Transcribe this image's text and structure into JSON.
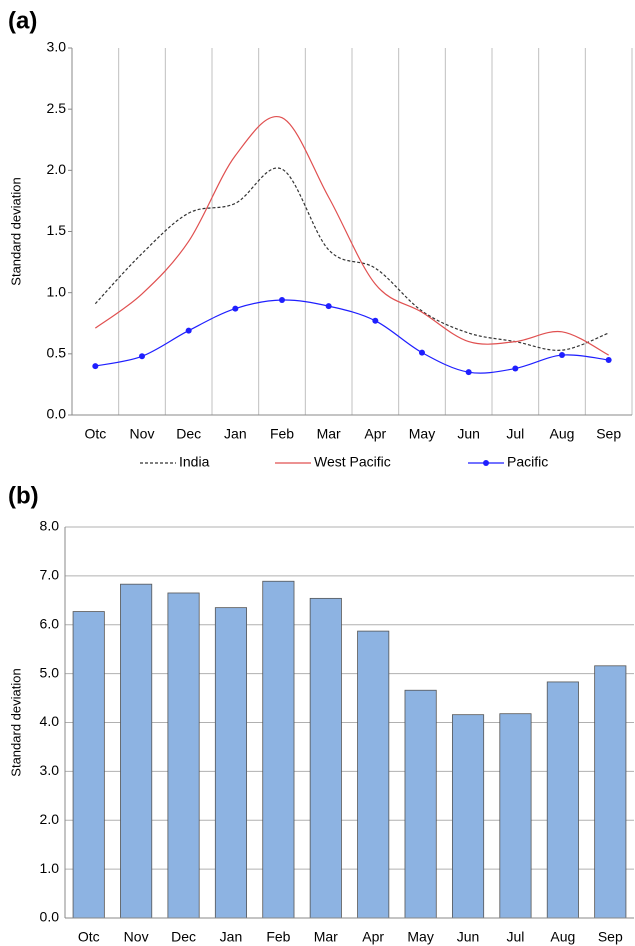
{
  "chart_data": [
    {
      "type": "line",
      "panel_label": "(a)",
      "y_label": "Standard deviation",
      "categories": [
        "Otc",
        "Nov",
        "Dec",
        "Jan",
        "Feb",
        "Mar",
        "Apr",
        "May",
        "Jun",
        "Jul",
        "Aug",
        "Sep"
      ],
      "series": [
        {
          "name": "India",
          "color": "#333333",
          "dashed": true,
          "markers": false,
          "values": [
            0.91,
            1.32,
            1.65,
            1.73,
            2.01,
            1.35,
            1.2,
            0.85,
            0.67,
            0.6,
            0.53,
            0.67
          ]
        },
        {
          "name": "West Pacific",
          "color": "#e05050",
          "dashed": false,
          "markers": false,
          "values": [
            0.71,
            0.99,
            1.42,
            2.12,
            2.43,
            1.78,
            1.07,
            0.84,
            0.6,
            0.6,
            0.68,
            0.49
          ]
        },
        {
          "name": "Pacific",
          "color": "#1f1fff",
          "dashed": false,
          "markers": true,
          "values": [
            0.4,
            0.48,
            0.69,
            0.87,
            0.94,
            0.89,
            0.77,
            0.51,
            0.35,
            0.38,
            0.49,
            0.45
          ]
        }
      ],
      "ylim": [
        0,
        3
      ],
      "yticks": [
        {
          "value": 0,
          "label": "0.0"
        },
        {
          "value": 0.5,
          "label": "0.5"
        },
        {
          "value": 1,
          "label": "1.0"
        },
        {
          "value": 1.5,
          "label": "1.5"
        },
        {
          "value": 2,
          "label": "2.0"
        },
        {
          "value": 2.5,
          "label": "2.5"
        },
        {
          "value": 3,
          "label": "3.0"
        }
      ],
      "x_grid": true,
      "grid": false,
      "smooth": true,
      "legend_position": "bottom"
    },
    {
      "type": "bar",
      "panel_label": "(b)",
      "y_label": "Standard deviation",
      "categories": [
        "Otc",
        "Nov",
        "Dec",
        "Jan",
        "Feb",
        "Mar",
        "Apr",
        "May",
        "Jun",
        "Jul",
        "Aug",
        "Sep"
      ],
      "values": [
        6.27,
        6.83,
        6.65,
        6.35,
        6.89,
        6.54,
        5.87,
        4.66,
        4.16,
        4.18,
        4.83,
        5.16
      ],
      "color": "#8db3e2",
      "ylim": [
        0,
        8
      ],
      "yticks": [
        {
          "value": 0,
          "label": "0.0"
        },
        {
          "value": 1,
          "label": "1.0"
        },
        {
          "value": 2,
          "label": "2.0"
        },
        {
          "value": 3,
          "label": "3.0"
        },
        {
          "value": 4,
          "label": "4.0"
        },
        {
          "value": 5,
          "label": "5.0"
        },
        {
          "value": 6,
          "label": "6.0"
        },
        {
          "value": 7,
          "label": "7.0"
        },
        {
          "value": 8,
          "label": "8.0"
        }
      ],
      "x_grid": false,
      "grid": true
    }
  ]
}
